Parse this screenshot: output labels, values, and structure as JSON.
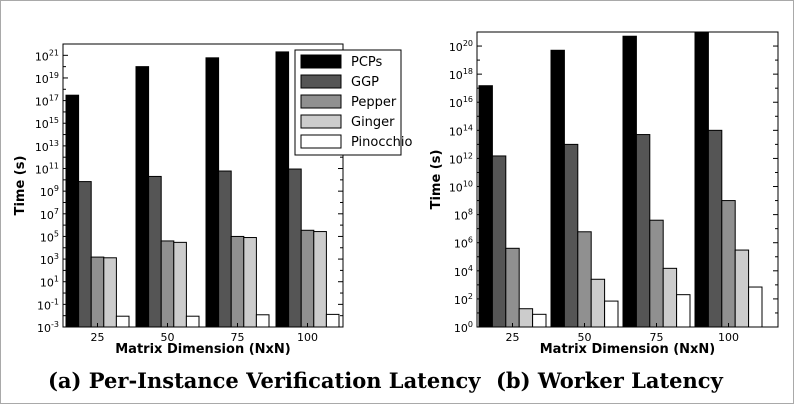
{
  "captions": {
    "left": "(a) Per-Instance Verification Latency",
    "right": "(b) Worker Latency"
  },
  "chart_data": [
    {
      "type": "bar",
      "scale": "log",
      "xlabel": "Matrix Dimension (NxN)",
      "ylabel": "Time (s)",
      "categories": [
        "25",
        "50",
        "75",
        "100"
      ],
      "ylim": [
        0.001,
        1e+22
      ],
      "yticks": [
        {
          "value": 0.001,
          "base": "10",
          "exp": "-3"
        },
        {
          "value": 0.1,
          "base": "10",
          "exp": "-1"
        },
        {
          "value": 10,
          "base": "10",
          "exp": "1"
        },
        {
          "value": 1000,
          "base": "10",
          "exp": "3"
        },
        {
          "value": 100000,
          "base": "10",
          "exp": "5"
        },
        {
          "value": 10000000.0,
          "base": "10",
          "exp": "7"
        },
        {
          "value": 1000000000.0,
          "base": "10",
          "exp": "9"
        },
        {
          "value": 100000000000.0,
          "base": "10",
          "exp": "11"
        },
        {
          "value": 10000000000000.0,
          "base": "10",
          "exp": "13"
        },
        {
          "value": 1000000000000000.0,
          "base": "10",
          "exp": "15"
        },
        {
          "value": 1e+17,
          "base": "10",
          "exp": "17"
        },
        {
          "value": 1e+19,
          "base": "10",
          "exp": "19"
        },
        {
          "value": 1e+21,
          "base": "10",
          "exp": "21"
        }
      ],
      "legend_position": "top-right",
      "series": [
        {
          "name": "PCPs",
          "color": "#000000",
          "values": [
            3e+17,
            1e+20,
            6e+20,
            2e+21
          ]
        },
        {
          "name": "GGP",
          "color": "#555555",
          "values": [
            7000000000.0,
            20000000000.0,
            60000000000.0,
            90000000000.0
          ]
        },
        {
          "name": "Pepper",
          "color": "#909090",
          "values": [
            1500,
            40000.0,
            100000.0,
            350000.0
          ]
        },
        {
          "name": "Ginger",
          "color": "#cccccc",
          "values": [
            1300,
            30000.0,
            80000.0,
            270000.0
          ]
        },
        {
          "name": "Pinocchio",
          "color": "#ffffff",
          "values": [
            0.009,
            0.009,
            0.012,
            0.013
          ]
        }
      ]
    },
    {
      "type": "bar",
      "scale": "log",
      "xlabel": "Matrix Dimension (NxN)",
      "ylabel": "Time (s)",
      "categories": [
        "25",
        "50",
        "75",
        "100"
      ],
      "ylim": [
        1,
        1e+21
      ],
      "yticks": [
        {
          "value": 1,
          "base": "10",
          "exp": "0"
        },
        {
          "value": 100,
          "base": "10",
          "exp": "2"
        },
        {
          "value": 10000,
          "base": "10",
          "exp": "4"
        },
        {
          "value": 1000000.0,
          "base": "10",
          "exp": "6"
        },
        {
          "value": 100000000.0,
          "base": "10",
          "exp": "8"
        },
        {
          "value": 10000000000.0,
          "base": "10",
          "exp": "10"
        },
        {
          "value": 1000000000000.0,
          "base": "10",
          "exp": "12"
        },
        {
          "value": 100000000000000.0,
          "base": "10",
          "exp": "14"
        },
        {
          "value": 1e+16,
          "base": "10",
          "exp": "16"
        },
        {
          "value": 1e+18,
          "base": "10",
          "exp": "18"
        },
        {
          "value": 1e+20,
          "base": "10",
          "exp": "20"
        }
      ],
      "series": [
        {
          "name": "PCPs",
          "color": "#000000",
          "values": [
            1.5e+17,
            5e+19,
            5e+20,
            1e+21
          ]
        },
        {
          "name": "GGP",
          "color": "#555555",
          "values": [
            1500000000000.0,
            10000000000000.0,
            50000000000000.0,
            100000000000000.0
          ]
        },
        {
          "name": "Pepper",
          "color": "#909090",
          "values": [
            400000.0,
            6000000.0,
            40000000.0,
            1000000000.0
          ]
        },
        {
          "name": "Ginger",
          "color": "#cccccc",
          "values": [
            20,
            2500,
            15000.0,
            300000.0
          ]
        },
        {
          "name": "Pinocchio",
          "color": "#ffffff",
          "values": [
            8,
            70,
            200,
            700
          ]
        }
      ]
    }
  ]
}
